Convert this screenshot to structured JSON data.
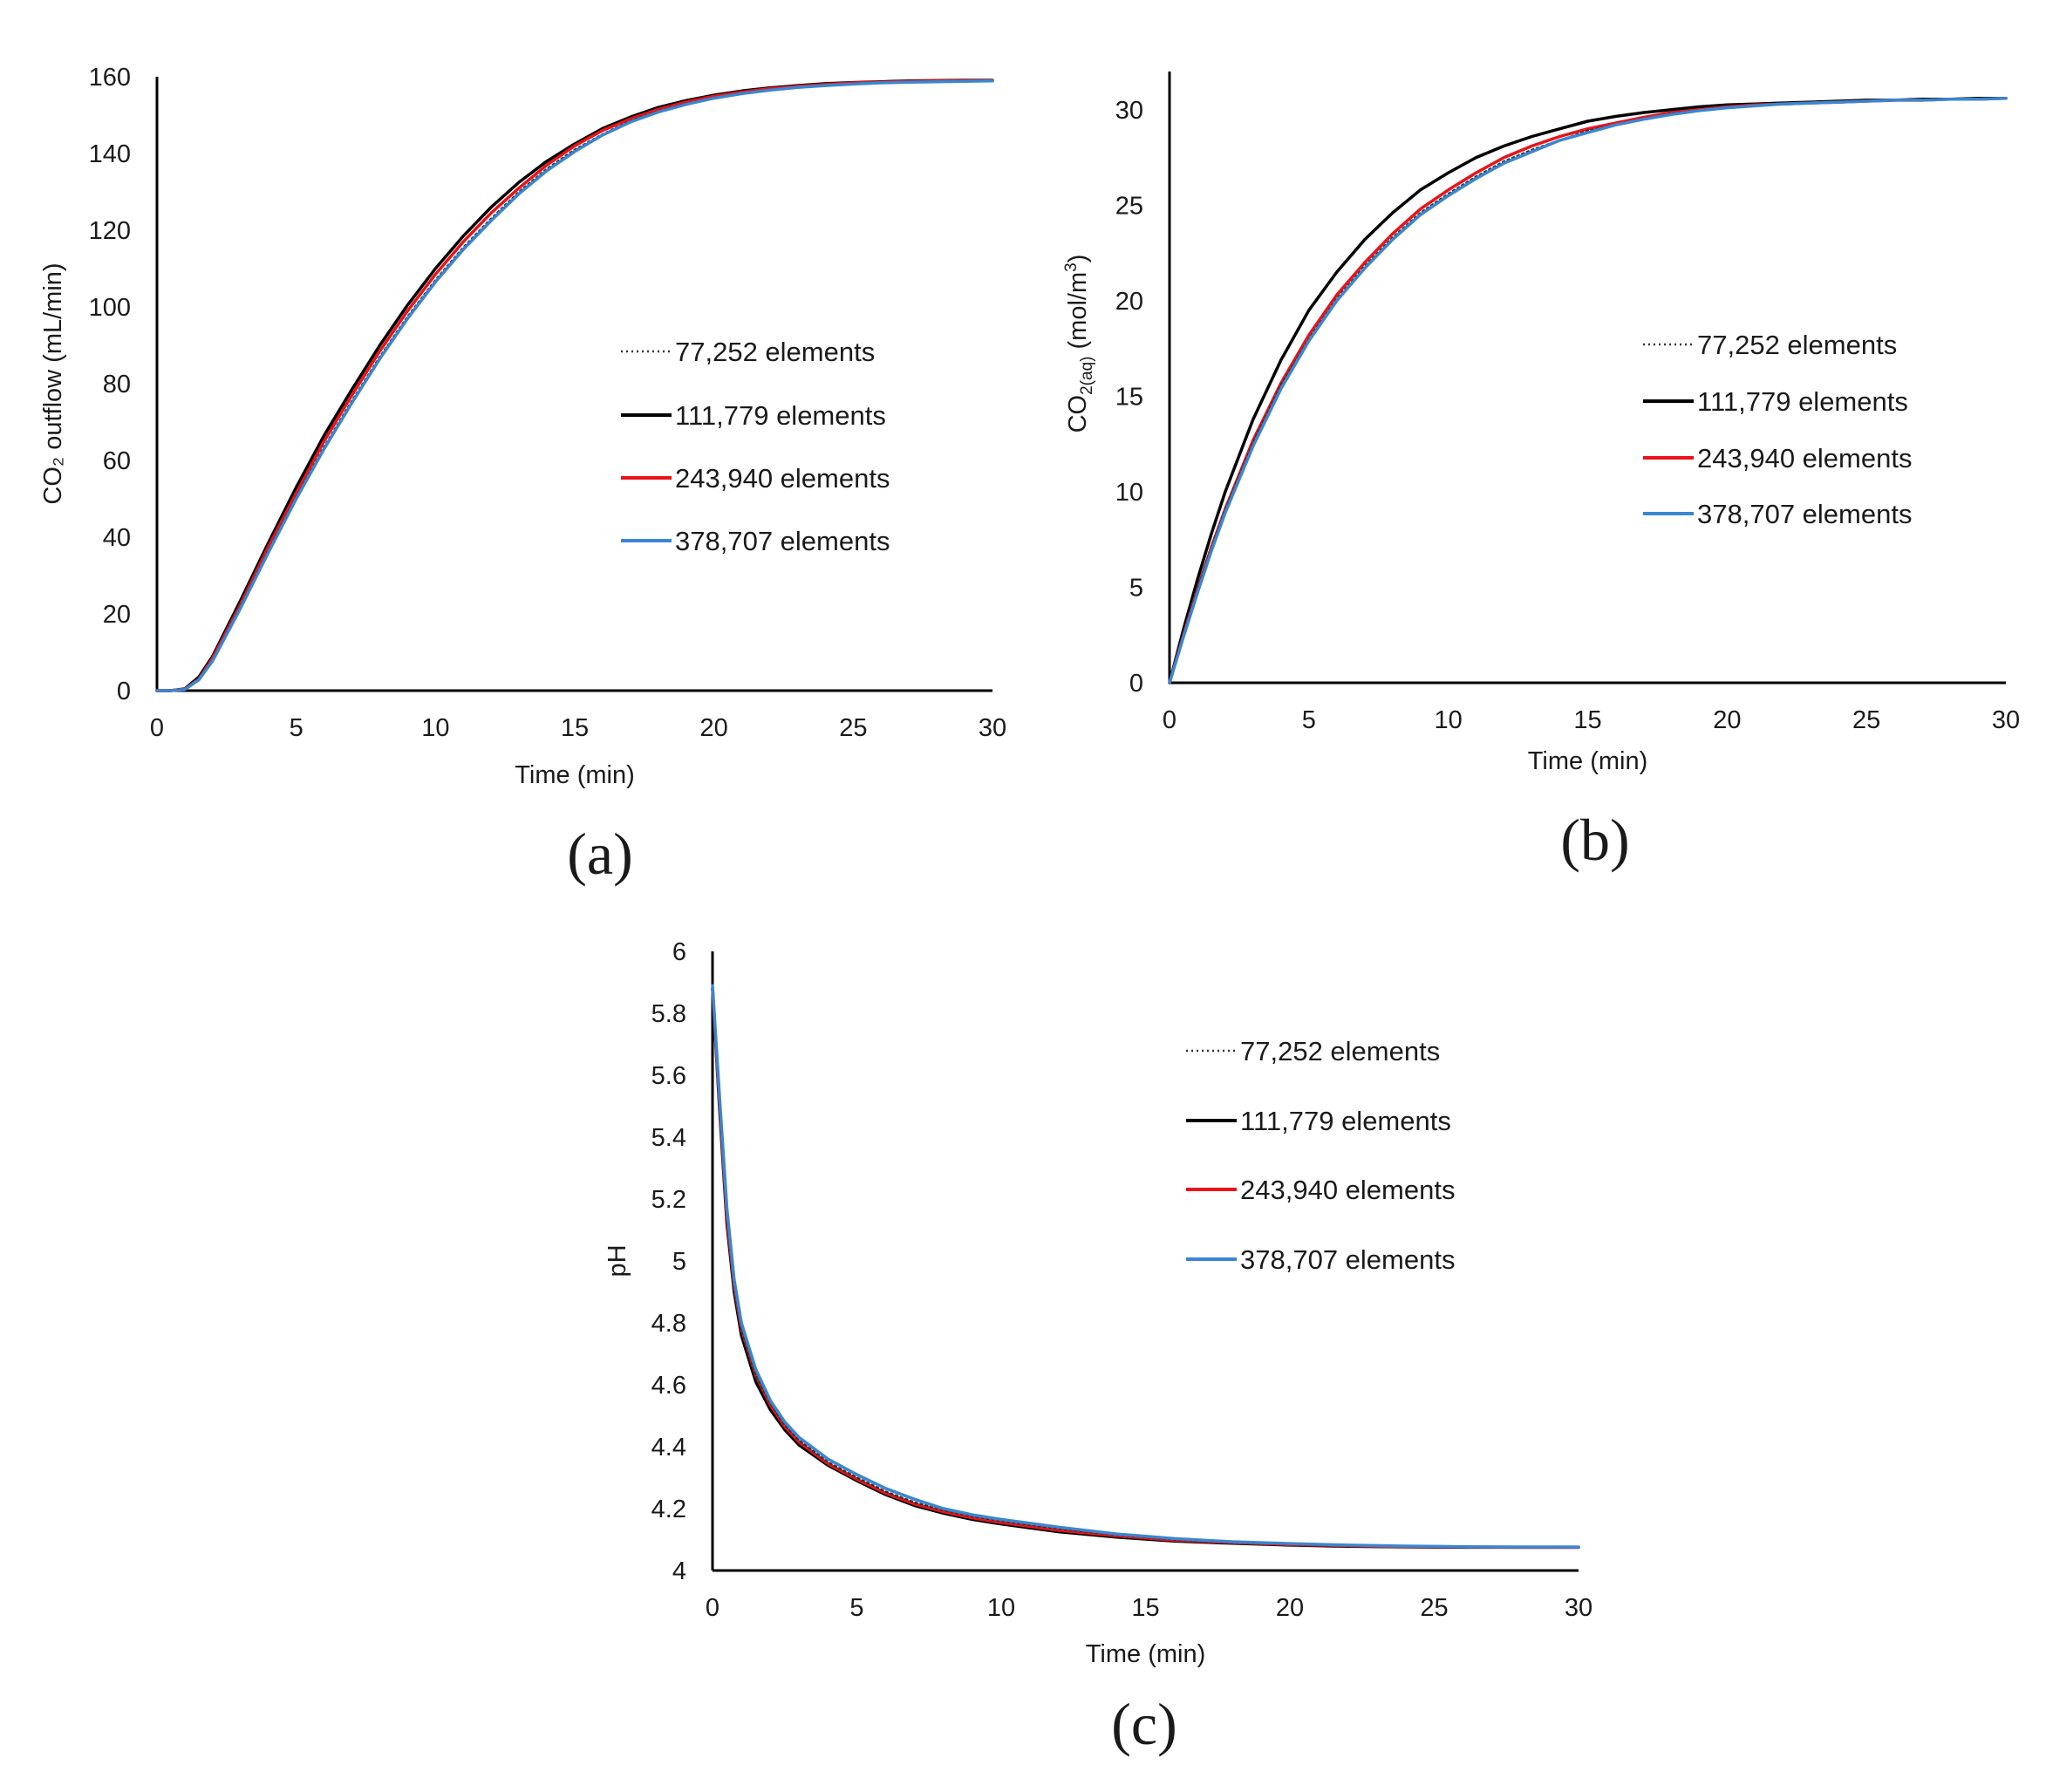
{
  "figure": {
    "background": "#ffffff"
  },
  "legend_series": [
    {
      "name": "77,252 elements",
      "style": "dotted",
      "color": "#333333"
    },
    {
      "name": "111,779 elements",
      "style": "solid",
      "color": "#000000"
    },
    {
      "name": "243,940 elements",
      "style": "solid",
      "color": "#e8141a"
    },
    {
      "name": "378,707 elements",
      "style": "solid",
      "color": "#3a86d0"
    }
  ],
  "chart_data": [
    {
      "id": "a",
      "panel_label": "(a)",
      "type": "line",
      "title": "",
      "xlabel": "Time (min)",
      "ylabel": "CO₂ outflow (mL/min)",
      "xlim": [
        0,
        30
      ],
      "ylim": [
        0,
        160
      ],
      "xticks": [
        0,
        5,
        10,
        15,
        20,
        25,
        30
      ],
      "yticks": [
        0,
        20,
        40,
        60,
        80,
        100,
        120,
        140,
        160
      ],
      "legend_position": "center-right",
      "x": [
        0,
        0.5,
        1,
        1.5,
        2,
        3,
        4,
        5,
        6,
        7,
        8,
        9,
        10,
        11,
        12,
        13,
        14,
        15,
        16,
        17,
        18,
        19,
        20,
        21,
        22,
        23,
        24,
        25,
        26,
        27,
        28,
        29,
        30
      ],
      "series": [
        {
          "name": "77,252 elements",
          "values": [
            0,
            0,
            0.4,
            3,
            8,
            22,
            36.5,
            50.5,
            63.5,
            75.5,
            87,
            97.5,
            107,
            115.5,
            123,
            130,
            136,
            141,
            145,
            148.5,
            151,
            153,
            154.5,
            155.7,
            156.6,
            157.3,
            157.8,
            158.2,
            158.5,
            158.7,
            158.8,
            158.9,
            159
          ]
        },
        {
          "name": "111,779 elements",
          "values": [
            0,
            0,
            0.5,
            3.5,
            9,
            23.5,
            38.5,
            53,
            66.5,
            78.5,
            90,
            100.5,
            110,
            118.5,
            126,
            132.5,
            138,
            142.5,
            146.5,
            149.5,
            152,
            153.8,
            155.2,
            156.3,
            157.1,
            157.7,
            158.2,
            158.5,
            158.7,
            158.9,
            159,
            159.1,
            159.1
          ]
        },
        {
          "name": "243,940 elements",
          "values": [
            0,
            0,
            0.4,
            3,
            8.5,
            22.5,
            37.5,
            51.5,
            65,
            77,
            88.5,
            99,
            108.5,
            117,
            124.5,
            131,
            137,
            142,
            146,
            149,
            151.5,
            153.4,
            154.9,
            156,
            156.9,
            157.5,
            158,
            158.4,
            158.6,
            158.8,
            158.9,
            159,
            159
          ]
        },
        {
          "name": "378,707 elements",
          "values": [
            0,
            0,
            0.3,
            2.8,
            7.8,
            21.5,
            36,
            50,
            63,
            75,
            86.5,
            97,
            106.5,
            115,
            122.5,
            129.5,
            135.5,
            140.5,
            144.8,
            148.2,
            150.8,
            152.8,
            154.4,
            155.6,
            156.5,
            157.2,
            157.7,
            158.1,
            158.4,
            158.6,
            158.7,
            158.8,
            158.9
          ]
        }
      ]
    },
    {
      "id": "b",
      "panel_label": "(b)",
      "type": "line",
      "title": "",
      "xlabel": "Time (min)",
      "ylabel": "CO",
      "ylabel_sub": "2(aq)",
      "ylabel_rest": " (mol/m",
      "ylabel_sup": "3",
      "ylabel_end": ")",
      "xlim": [
        0,
        30
      ],
      "ylim": [
        0,
        32
      ],
      "xticks": [
        0,
        5,
        10,
        15,
        20,
        25,
        30
      ],
      "yticks": [
        0,
        5,
        10,
        15,
        20,
        25,
        30
      ],
      "legend_position": "center-right",
      "x": [
        0,
        0.5,
        1,
        1.5,
        2,
        3,
        4,
        5,
        6,
        7,
        8,
        9,
        10,
        11,
        12,
        13,
        14,
        15,
        16,
        17,
        18,
        19,
        20,
        21,
        22,
        23,
        24,
        25,
        26,
        27,
        28,
        29,
        30
      ],
      "series": [
        {
          "name": "77,252 elements",
          "values": [
            0,
            2.5,
            4.9,
            7.1,
            9.1,
            12.6,
            15.6,
            18,
            20.1,
            21.8,
            23.3,
            24.6,
            25.6,
            26.5,
            27.3,
            27.9,
            28.4,
            28.9,
            29.2,
            29.5,
            29.8,
            29.95,
            30.1,
            30.2,
            30.3,
            30.35,
            30.4,
            30.45,
            30.5,
            30.5,
            30.55,
            30.55,
            30.6
          ]
        },
        {
          "name": "111,779 elements",
          "values": [
            0,
            2.8,
            5.4,
            7.8,
            10,
            13.8,
            16.9,
            19.5,
            21.5,
            23.2,
            24.6,
            25.8,
            26.7,
            27.5,
            28.1,
            28.6,
            29,
            29.4,
            29.65,
            29.85,
            30,
            30.15,
            30.25,
            30.3,
            30.35,
            30.4,
            30.45,
            30.5,
            30.5,
            30.55,
            30.55,
            30.6,
            30.6
          ]
        },
        {
          "name": "243,940 elements",
          "values": [
            0,
            2.5,
            4.9,
            7.1,
            9.1,
            12.7,
            15.7,
            18.2,
            20.3,
            22,
            23.5,
            24.8,
            25.8,
            26.7,
            27.5,
            28.1,
            28.6,
            29,
            29.3,
            29.6,
            29.85,
            30,
            30.15,
            30.25,
            30.3,
            30.35,
            30.4,
            30.45,
            30.5,
            30.5,
            30.55,
            30.55,
            30.6
          ]
        },
        {
          "name": "378,707 elements",
          "values": [
            0,
            2.4,
            4.7,
            6.9,
            8.9,
            12.4,
            15.4,
            17.9,
            20,
            21.7,
            23.2,
            24.5,
            25.5,
            26.4,
            27.2,
            27.8,
            28.4,
            28.8,
            29.2,
            29.5,
            29.75,
            29.95,
            30.1,
            30.2,
            30.3,
            30.35,
            30.4,
            30.45,
            30.5,
            30.5,
            30.55,
            30.55,
            30.6
          ]
        }
      ]
    },
    {
      "id": "c",
      "panel_label": "(c)",
      "type": "line",
      "title": "",
      "xlabel": "Time (min)",
      "ylabel": "pH",
      "xlim": [
        0,
        30
      ],
      "ylim": [
        4,
        6
      ],
      "xticks": [
        0,
        5,
        10,
        15,
        20,
        25,
        30
      ],
      "yticks": [
        4,
        4.2,
        4.4,
        4.6,
        4.8,
        5,
        5.2,
        5.4,
        5.6,
        5.8,
        6
      ],
      "legend_position": "top-right",
      "x": [
        0,
        0.25,
        0.5,
        0.75,
        1,
        1.5,
        2,
        2.5,
        3,
        4,
        5,
        6,
        7,
        8,
        9,
        10,
        12,
        14,
        16,
        18,
        20,
        22,
        24,
        26,
        28,
        30
      ],
      "series": [
        {
          "name": "77,252 elements",
          "values": [
            5.88,
            5.5,
            5.15,
            4.92,
            4.78,
            4.63,
            4.54,
            4.47,
            4.42,
            4.35,
            4.3,
            4.255,
            4.22,
            4.195,
            4.175,
            4.16,
            4.135,
            4.115,
            4.1,
            4.09,
            4.085,
            4.08,
            4.078,
            4.076,
            4.075,
            4.075
          ]
        },
        {
          "name": "111,779 elements",
          "values": [
            5.88,
            5.48,
            5.12,
            4.9,
            4.76,
            4.61,
            4.52,
            4.455,
            4.405,
            4.34,
            4.29,
            4.245,
            4.21,
            4.185,
            4.165,
            4.15,
            4.125,
            4.108,
            4.095,
            4.088,
            4.082,
            4.078,
            4.076,
            4.075,
            4.075,
            4.075
          ]
        },
        {
          "name": "243,940 elements",
          "values": [
            5.88,
            5.5,
            5.14,
            4.92,
            4.78,
            4.63,
            4.535,
            4.465,
            4.415,
            4.345,
            4.295,
            4.25,
            4.215,
            4.19,
            4.17,
            4.155,
            4.13,
            4.112,
            4.098,
            4.09,
            4.084,
            4.08,
            4.077,
            4.076,
            4.075,
            4.075
          ]
        },
        {
          "name": "378,707 elements",
          "values": [
            5.89,
            5.52,
            5.17,
            4.94,
            4.8,
            4.65,
            4.55,
            4.48,
            4.43,
            4.36,
            4.31,
            4.265,
            4.23,
            4.2,
            4.18,
            4.165,
            4.14,
            4.118,
            4.103,
            4.093,
            4.087,
            4.082,
            4.079,
            4.077,
            4.076,
            4.076
          ]
        }
      ]
    }
  ]
}
